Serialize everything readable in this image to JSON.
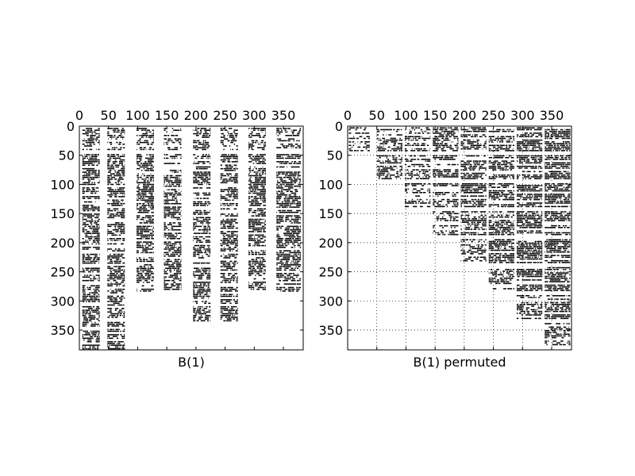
{
  "chart_data": [
    {
      "type": "heatmap",
      "subtype": "sparsity-pattern",
      "xlabel": "B(1)",
      "ylabel": "",
      "matrix_size": 384,
      "xlim": [
        0,
        384
      ],
      "ylim": [
        384,
        0
      ],
      "x_ticks": [
        "0",
        "50",
        "100",
        "150",
        "200",
        "250",
        "300",
        "350"
      ],
      "y_ticks": [
        "0",
        "50",
        "100",
        "150",
        "200",
        "250",
        "300",
        "350"
      ],
      "x_axis_position": "top",
      "grid": false,
      "marker_color": "#000000",
      "column_bands": [
        [
          5,
          35
        ],
        [
          48,
          78
        ],
        [
          98,
          128
        ],
        [
          145,
          175
        ],
        [
          195,
          225
        ],
        [
          242,
          272
        ],
        [
          290,
          320
        ],
        [
          338,
          380
        ]
      ],
      "row_extents": [
        384,
        384,
        285,
        280,
        335,
        335,
        285,
        285
      ]
    },
    {
      "type": "heatmap",
      "subtype": "sparsity-pattern",
      "xlabel": "B(1) permuted",
      "ylabel": "",
      "matrix_size": 384,
      "xlim": [
        0,
        384
      ],
      "ylim": [
        384,
        0
      ],
      "x_ticks": [
        "0",
        "50",
        "100",
        "150",
        "200",
        "250",
        "300",
        "350"
      ],
      "y_ticks": [
        "0",
        "50",
        "100",
        "150",
        "200",
        "250",
        "300",
        "350"
      ],
      "x_axis_position": "top",
      "grid": true,
      "grid_style": "dotted",
      "marker_color": "#000000",
      "block_boundaries": [
        0,
        48,
        96,
        144,
        192,
        240,
        288,
        336,
        384
      ],
      "structure": "block upper-triangular"
    }
  ]
}
